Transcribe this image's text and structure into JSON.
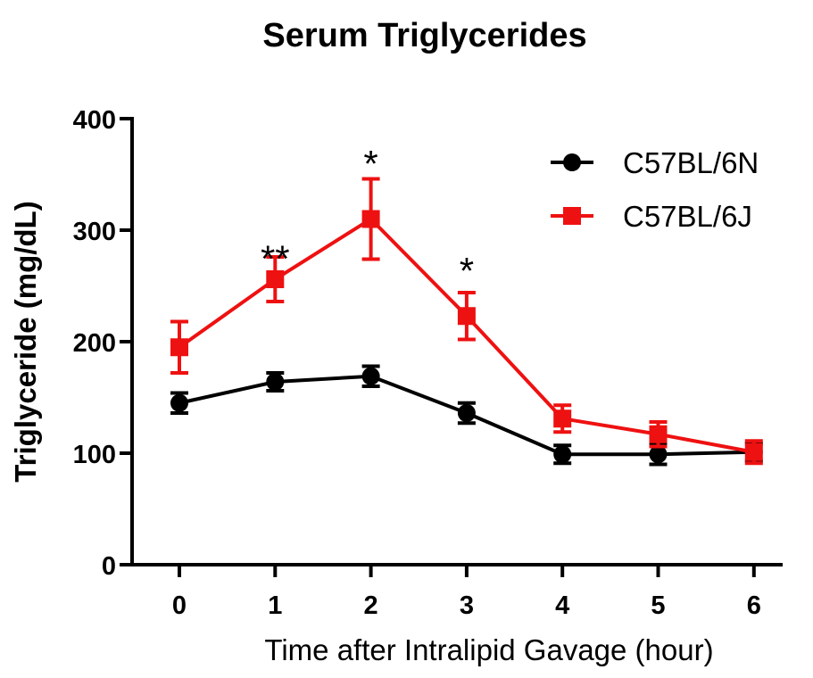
{
  "chart_data": {
    "type": "line",
    "title": "Serum Triglycerides",
    "xlabel": "Time after Intralipid Gavage (hour)",
    "ylabel": "Triglyceride (mg/dL)",
    "x": [
      0,
      1,
      2,
      3,
      4,
      5,
      6
    ],
    "x_tick_labels": [
      "0",
      "1",
      "2",
      "3",
      "4",
      "5",
      "6"
    ],
    "y_ticks": [
      0,
      100,
      200,
      300,
      400
    ],
    "y_tick_labels": [
      "0",
      "100",
      "200",
      "300",
      "400"
    ],
    "ylim": [
      0,
      400
    ],
    "xlim": [
      -0.5,
      6.3
    ],
    "grid": false,
    "legend_position": "top-right",
    "series": [
      {
        "name": "C57BL/6N",
        "color": "#000000",
        "marker": "circle",
        "values": [
          145,
          164,
          169,
          136,
          99,
          99,
          101
        ],
        "errors": [
          9,
          8,
          9,
          9,
          8,
          9,
          8
        ]
      },
      {
        "name": "C57BL/6J",
        "color": "#ee1111",
        "marker": "square",
        "values": [
          195,
          256,
          310,
          223,
          131,
          117,
          101
        ],
        "errors": [
          23,
          20,
          36,
          21,
          12,
          11,
          10
        ]
      }
    ],
    "annotations": [
      {
        "x": 1,
        "y": 283,
        "text": "**"
      },
      {
        "x": 2,
        "y": 368,
        "text": "*"
      },
      {
        "x": 3,
        "y": 272,
        "text": "*"
      }
    ]
  }
}
